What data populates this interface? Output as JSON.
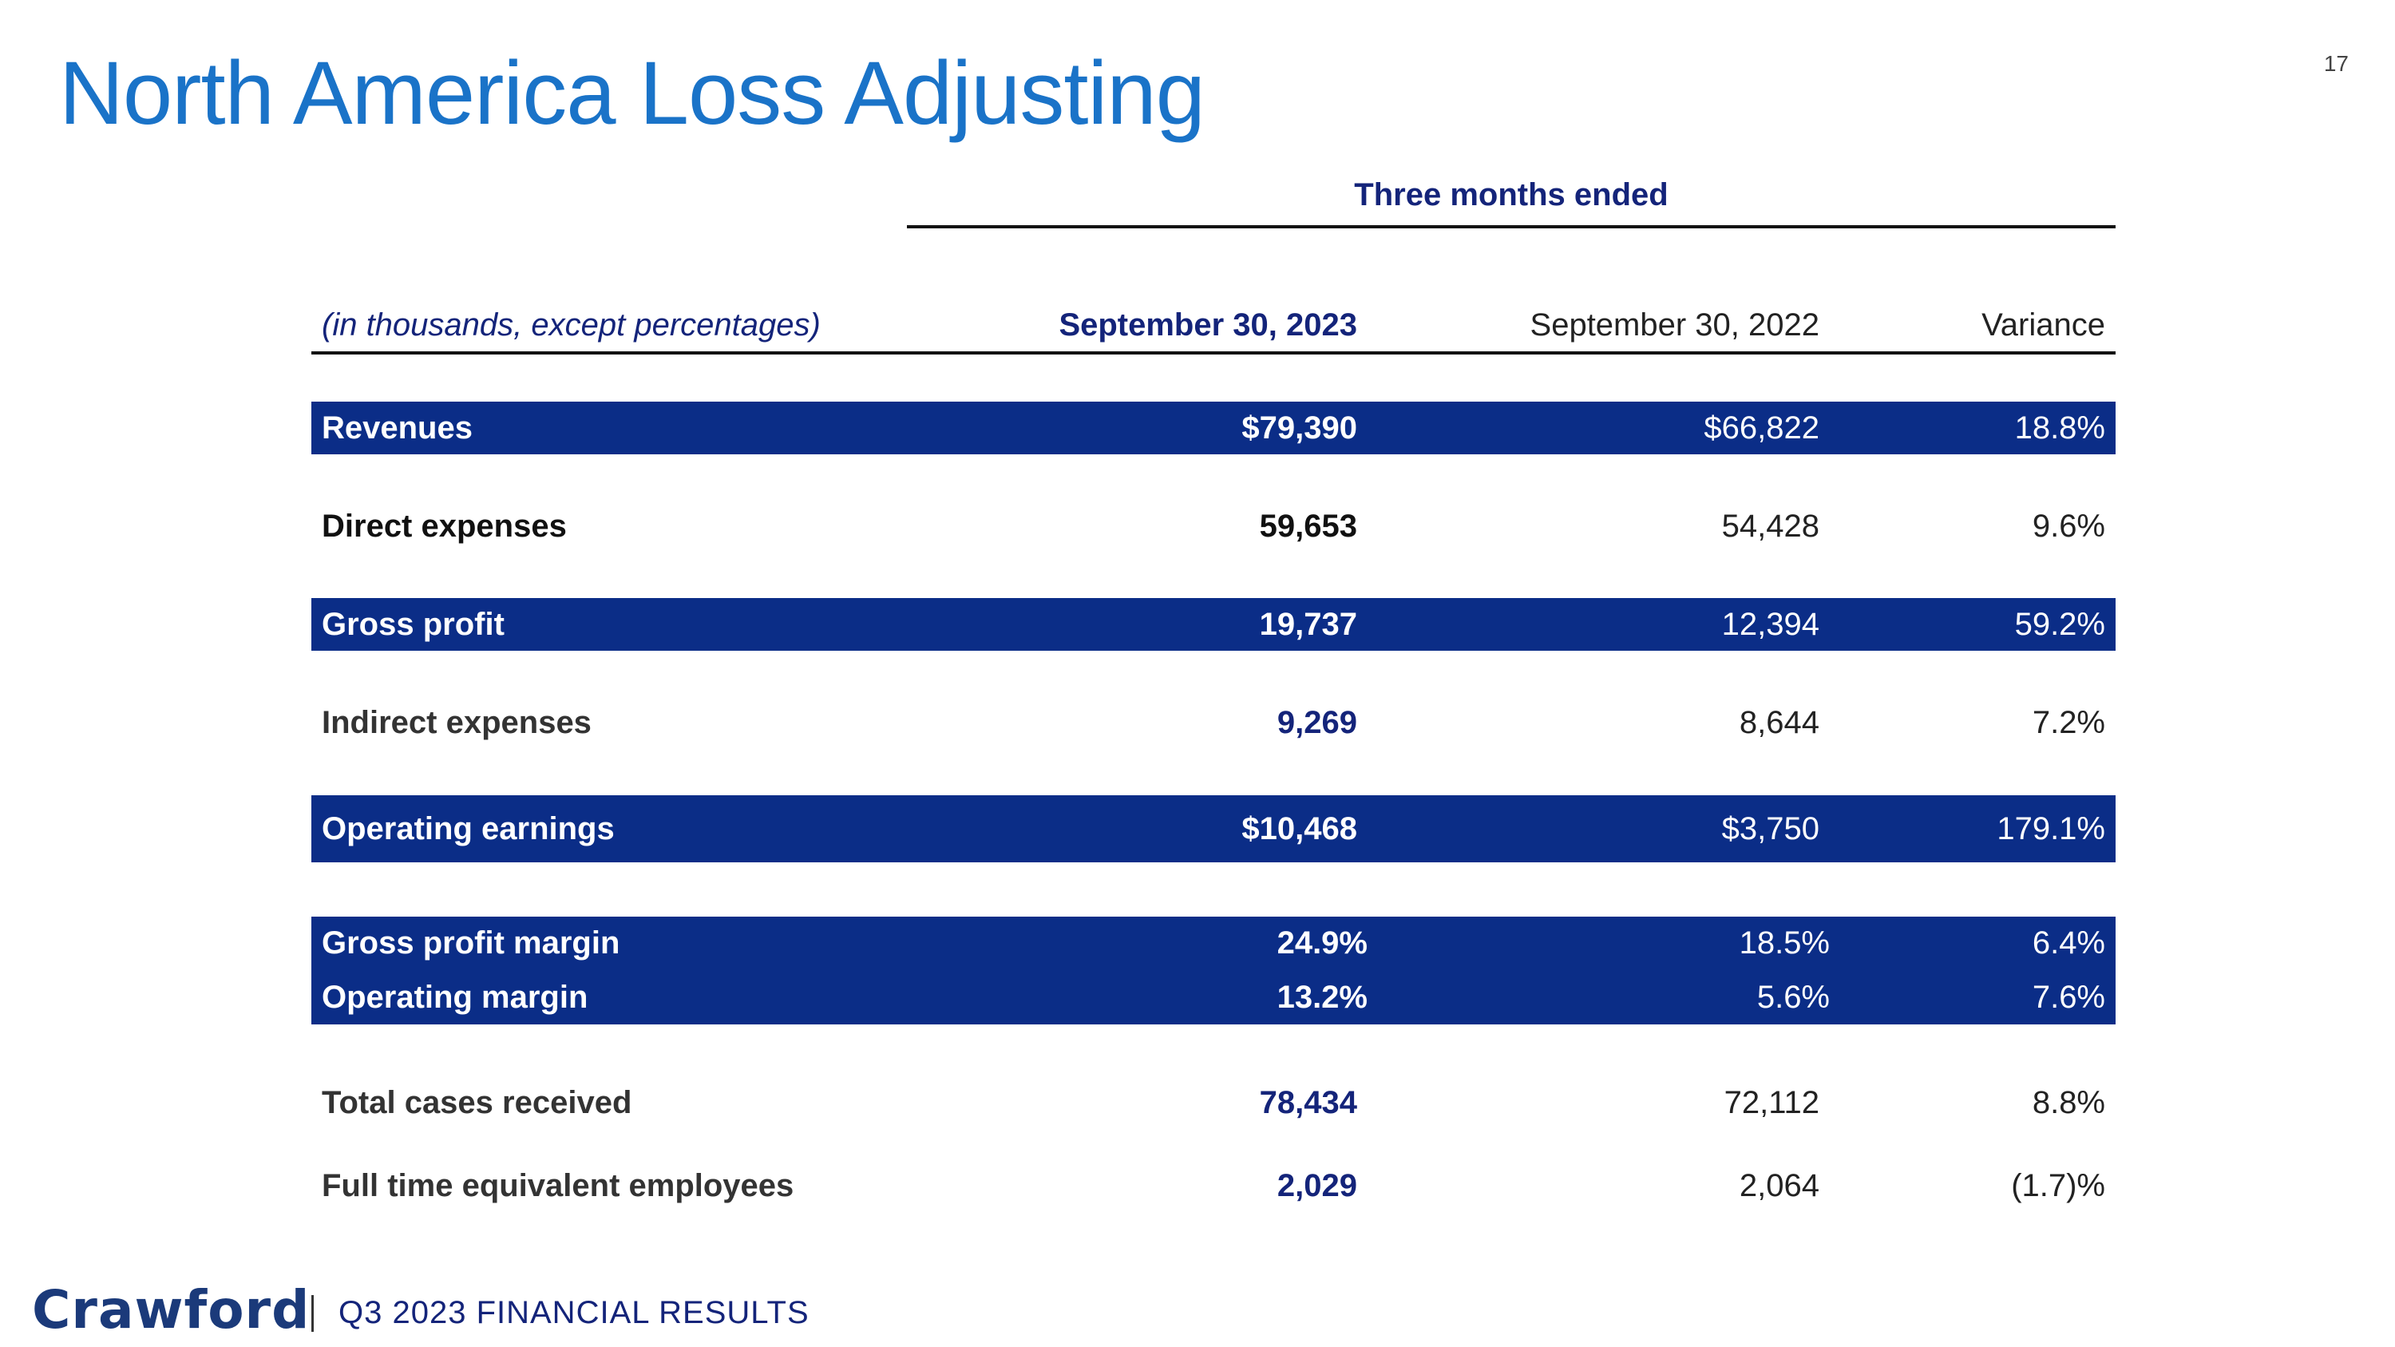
{
  "title": "North America Loss Adjusting",
  "page_number": "17",
  "table": {
    "group_header": "Three months ended",
    "header": {
      "label": "(in thousands, except percentages)",
      "current": "September 30, 2023",
      "prior": "September 30, 2022",
      "variance": "Variance"
    },
    "rows": [
      {
        "label": "Revenues",
        "current": "$79,390",
        "prior": "$66,822",
        "variance": "18.8%"
      },
      {
        "label": "Direct expenses",
        "current": "59,653",
        "prior": "54,428",
        "variance": "9.6%"
      },
      {
        "label": "Gross profit",
        "current": "19,737",
        "prior": "12,394",
        "variance": "59.2%"
      },
      {
        "label": "Indirect expenses",
        "current": "9,269",
        "prior": "8,644",
        "variance": "7.2%"
      },
      {
        "label": "Operating earnings",
        "current": "$10,468",
        "prior": "$3,750",
        "variance": "179.1%"
      },
      {
        "label": "Gross profit margin",
        "current": "24.9%",
        "prior": "18.5%",
        "variance": "6.4%"
      },
      {
        "label": "Operating margin",
        "current": "13.2%",
        "prior": "5.6%",
        "variance": "7.6%"
      },
      {
        "label": "Total cases received",
        "current": "78,434",
        "prior": "72,112",
        "variance": "8.8%"
      },
      {
        "label": "Full time equivalent employees",
        "current": "2,029",
        "prior": "2,064",
        "variance": "(1.7)%"
      }
    ]
  },
  "footer": {
    "logo": "Crawford",
    "text": "Q3 2023 FINANCIAL RESULTS"
  }
}
